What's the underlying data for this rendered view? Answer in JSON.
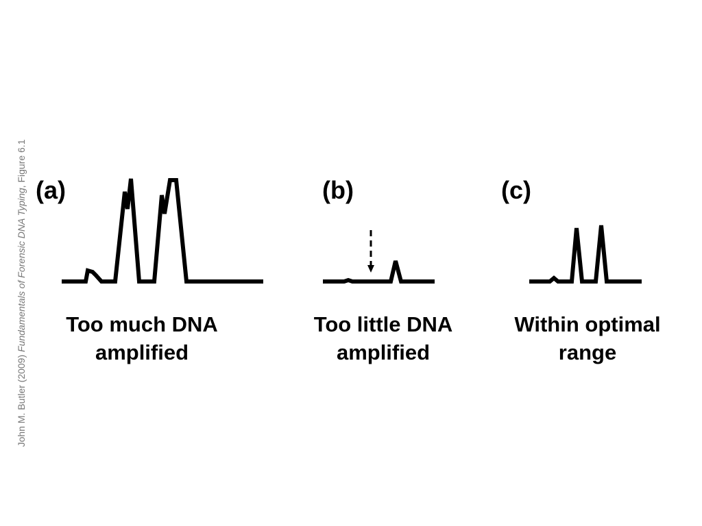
{
  "credit": {
    "author": "John M. Butler (2009) ",
    "book": "Fundamentals of Forensic DNA Typing",
    "figure": ", Figure 6.1"
  },
  "panels": [
    {
      "label": "(a)",
      "caption": [
        "Too much DNA",
        "amplified"
      ]
    },
    {
      "label": "(b)",
      "caption": [
        "Too little DNA",
        "amplified"
      ]
    },
    {
      "label": "(c)",
      "caption": [
        "Within optimal",
        "range"
      ]
    }
  ]
}
